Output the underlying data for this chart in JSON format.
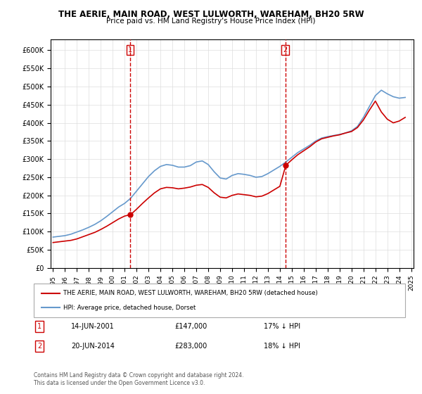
{
  "title": "THE AERIE, MAIN ROAD, WEST LULWORTH, WAREHAM, BH20 5RW",
  "subtitle": "Price paid vs. HM Land Registry's House Price Index (HPI)",
  "legend_line1": "THE AERIE, MAIN ROAD, WEST LULWORTH, WAREHAM, BH20 5RW (detached house)",
  "legend_line2": "HPI: Average price, detached house, Dorset",
  "annotation1_num": "1",
  "annotation1_date": "14-JUN-2001",
  "annotation1_price": "£147,000",
  "annotation1_hpi": "17% ↓ HPI",
  "annotation2_num": "2",
  "annotation2_date": "20-JUN-2014",
  "annotation2_price": "£283,000",
  "annotation2_hpi": "18% ↓ HPI",
  "footer": "Contains HM Land Registry data © Crown copyright and database right 2024.\nThis data is licensed under the Open Government Licence v3.0.",
  "vline1_x": 2001.45,
  "vline2_x": 2014.45,
  "marker1_x": 2001.45,
  "marker1_y": 147000,
  "marker2_x": 2014.45,
  "marker2_y": 283000,
  "hpi_x": [
    1995,
    1995.5,
    1996,
    1996.5,
    1997,
    1997.5,
    1998,
    1998.5,
    1999,
    1999.5,
    2000,
    2000.5,
    2001,
    2001.5,
    2002,
    2002.5,
    2003,
    2003.5,
    2004,
    2004.5,
    2005,
    2005.5,
    2006,
    2006.5,
    2007,
    2007.5,
    2008,
    2008.5,
    2009,
    2009.5,
    2010,
    2010.5,
    2011,
    2011.5,
    2012,
    2012.5,
    2013,
    2013.5,
    2014,
    2014.5,
    2015,
    2015.5,
    2016,
    2016.5,
    2017,
    2017.5,
    2018,
    2018.5,
    2019,
    2019.5,
    2020,
    2020.5,
    2021,
    2021.5,
    2022,
    2022.5,
    2023,
    2023.5,
    2024,
    2024.5
  ],
  "hpi_y": [
    85000,
    87000,
    89000,
    93000,
    99000,
    105000,
    112000,
    120000,
    130000,
    142000,
    155000,
    168000,
    178000,
    192000,
    212000,
    232000,
    252000,
    268000,
    280000,
    285000,
    283000,
    278000,
    278000,
    282000,
    292000,
    295000,
    285000,
    265000,
    248000,
    245000,
    255000,
    260000,
    258000,
    255000,
    250000,
    252000,
    260000,
    270000,
    280000,
    292000,
    305000,
    318000,
    328000,
    338000,
    350000,
    358000,
    362000,
    365000,
    368000,
    372000,
    378000,
    390000,
    415000,
    445000,
    475000,
    490000,
    480000,
    472000,
    468000,
    470000
  ],
  "property_x": [
    1995,
    1995.5,
    1996,
    1996.5,
    1997,
    1997.5,
    1998,
    1998.5,
    1999,
    1999.5,
    2000,
    2000.5,
    2001,
    2001.5,
    2002,
    2002.5,
    2003,
    2003.5,
    2004,
    2004.5,
    2005,
    2005.5,
    2006,
    2006.5,
    2007,
    2007.5,
    2008,
    2008.5,
    2009,
    2009.5,
    2010,
    2010.5,
    2011,
    2011.5,
    2012,
    2012.5,
    2013,
    2013.5,
    2014,
    2014.5,
    2015,
    2015.5,
    2016,
    2016.5,
    2017,
    2017.5,
    2018,
    2018.5,
    2019,
    2019.5,
    2020,
    2020.5,
    2021,
    2021.5,
    2022,
    2022.5,
    2023,
    2023.5,
    2024,
    2024.5
  ],
  "property_y": [
    70000,
    72000,
    74000,
    76000,
    80000,
    86000,
    92000,
    98000,
    106000,
    115000,
    125000,
    135000,
    143000,
    147000,
    162000,
    178000,
    193000,
    207000,
    218000,
    222000,
    221000,
    218000,
    220000,
    223000,
    228000,
    230000,
    222000,
    207000,
    195000,
    193000,
    200000,
    204000,
    202000,
    200000,
    196000,
    198000,
    205000,
    215000,
    225000,
    283000,
    298000,
    312000,
    323000,
    334000,
    347000,
    356000,
    360000,
    364000,
    367000,
    372000,
    376000,
    387000,
    408000,
    435000,
    460000,
    430000,
    410000,
    400000,
    405000,
    415000
  ],
  "red_color": "#cc0000",
  "blue_color": "#6699cc",
  "vline_color": "#cc0000",
  "ylim": [
    0,
    630000
  ],
  "xlim": [
    1994.8,
    2025.2
  ],
  "yticks": [
    0,
    50000,
    100000,
    150000,
    200000,
    250000,
    300000,
    350000,
    400000,
    450000,
    500000,
    550000,
    600000
  ],
  "xticks": [
    1995,
    1996,
    1997,
    1998,
    1999,
    2000,
    2001,
    2002,
    2003,
    2004,
    2005,
    2006,
    2007,
    2008,
    2009,
    2010,
    2011,
    2012,
    2013,
    2014,
    2015,
    2016,
    2017,
    2018,
    2019,
    2020,
    2021,
    2022,
    2023,
    2024,
    2025
  ]
}
